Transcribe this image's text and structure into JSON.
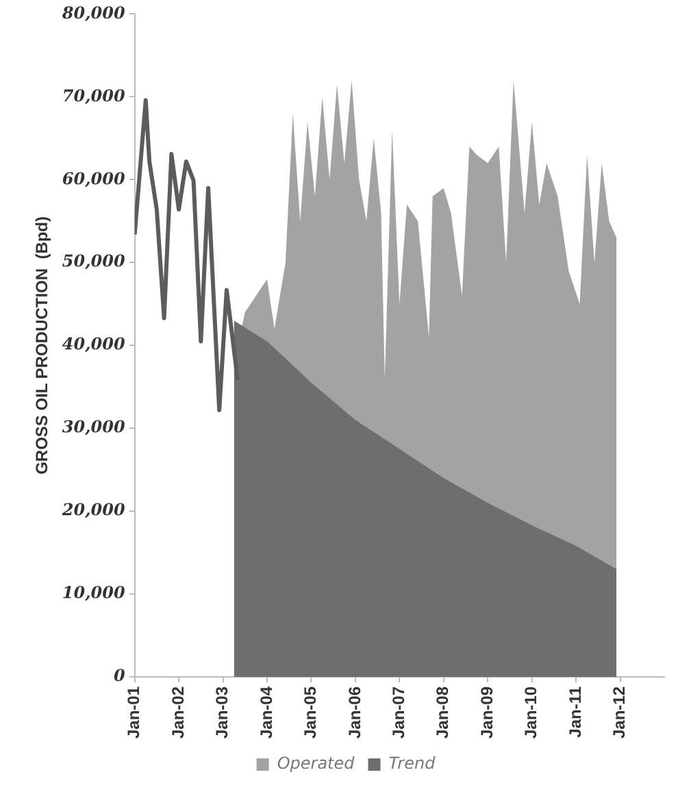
{
  "chart_data": {
    "type": "area",
    "ylabel": "GROSS OIL PRODUCTION  (Bpd)",
    "xlim": [
      "2001-01",
      "2013-01"
    ],
    "xticks": [
      {
        "value": "2001-01",
        "label": "Jan-01"
      },
      {
        "value": "2002-01",
        "label": "Jan-02"
      },
      {
        "value": "2003-01",
        "label": "Jan-03"
      },
      {
        "value": "2004-01",
        "label": "Jan-04"
      },
      {
        "value": "2005-01",
        "label": "Jan-05"
      },
      {
        "value": "2006-01",
        "label": "Jan-06"
      },
      {
        "value": "2007-01",
        "label": "Jan-07"
      },
      {
        "value": "2008-01",
        "label": "Jan-08"
      },
      {
        "value": "2009-01",
        "label": "Jan-09"
      },
      {
        "value": "2010-01",
        "label": "Jan-10"
      },
      {
        "value": "2011-01",
        "label": "Jan-11"
      },
      {
        "value": "2012-01",
        "label": "Jan-12"
      }
    ],
    "ylim": [
      0,
      80000
    ],
    "yticks": [
      {
        "value": 0,
        "label": "0"
      },
      {
        "value": 10000,
        "label": "10,000"
      },
      {
        "value": 20000,
        "label": "20,000"
      },
      {
        "value": 30000,
        "label": "30,000"
      },
      {
        "value": 40000,
        "label": "40,000"
      },
      {
        "value": 50000,
        "label": "50,000"
      },
      {
        "value": 60000,
        "label": "60,000"
      },
      {
        "value": 70000,
        "label": "70,000"
      },
      {
        "value": 80000,
        "label": "80,000"
      }
    ],
    "grid": false,
    "legend": "bottom",
    "series": [
      {
        "name": "Operated",
        "color": "#a3a3a3",
        "x": [
          "2003-04",
          "2003-07",
          "2003-10",
          "2004-01",
          "2004-03",
          "2004-06",
          "2004-08",
          "2004-10",
          "2004-12",
          "2005-02",
          "2005-04",
          "2005-06",
          "2005-08",
          "2005-10",
          "2005-12",
          "2006-02",
          "2006-04",
          "2006-06",
          "2006-08",
          "2006-09",
          "2006-11",
          "2007-01",
          "2007-03",
          "2007-06",
          "2007-09",
          "2007-10",
          "2008-01",
          "2008-03",
          "2008-06",
          "2008-08",
          "2008-10",
          "2009-01",
          "2009-04",
          "2009-06",
          "2009-08",
          "2009-11",
          "2010-01",
          "2010-03",
          "2010-05",
          "2010-08",
          "2010-11",
          "2011-02",
          "2011-04",
          "2011-06",
          "2011-08",
          "2011-10",
          "2011-12"
        ],
        "values": [
          38000,
          44000,
          null,
          48000,
          42000,
          50000,
          68000,
          55000,
          67000,
          58000,
          70000,
          60000,
          71500,
          62000,
          72000,
          60000,
          55000,
          65000,
          56000,
          36000,
          66000,
          45000,
          57000,
          55000,
          41000,
          58000,
          59000,
          56000,
          46000,
          64000,
          63000,
          62000,
          64000,
          50000,
          72000,
          56000,
          67000,
          57000,
          62000,
          58000,
          49000,
          45000,
          63000,
          50000,
          62000,
          55000,
          53000
        ]
      },
      {
        "name": "Trend",
        "color": "#6e6e6e",
        "x": [
          "2003-04",
          "2004-01",
          "2005-01",
          "2006-01",
          "2007-01",
          "2008-01",
          "2009-01",
          "2010-01",
          "2011-01",
          "2011-12"
        ],
        "values": [
          43000,
          40500,
          35500,
          31000,
          27500,
          24000,
          21000,
          18300,
          15800,
          13000
        ]
      },
      {
        "type": "line",
        "color": "#5c5c5c",
        "x": [
          "2001-01",
          "2001-04",
          "2001-05",
          "2001-07",
          "2001-09",
          "2001-11",
          "2002-01",
          "2002-03",
          "2002-05",
          "2002-07",
          "2002-09",
          "2002-12",
          "2003-02",
          "2003-05"
        ],
        "values": [
          53400,
          69600,
          62200,
          56400,
          43300,
          63100,
          56400,
          62200,
          59900,
          40500,
          59000,
          32200,
          46700,
          35800
        ]
      }
    ]
  }
}
